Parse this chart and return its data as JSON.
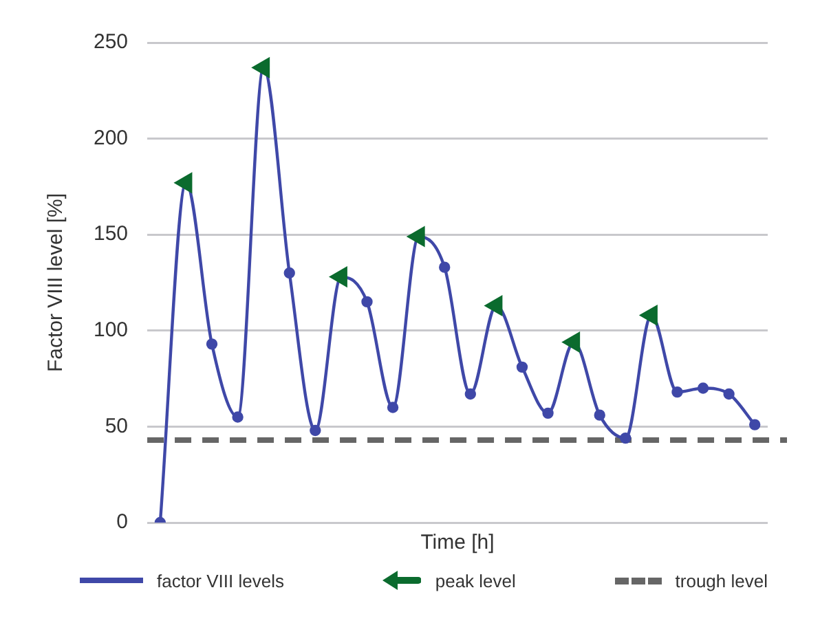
{
  "chart_data": {
    "type": "line",
    "xlabel": "Time [h]",
    "ylabel": "Factor VIII level [%]",
    "categories": [
      null,
      null,
      null,
      null,
      null,
      null,
      null,
      null,
      null,
      null,
      null,
      null,
      null,
      null,
      null,
      null,
      null,
      null,
      null,
      null,
      null,
      null,
      null,
      null
    ],
    "series": [
      {
        "name": "factor VIII levels",
        "color": "#3f48a8",
        "marker": "circle",
        "values": [
          0,
          177,
          93,
          55,
          237,
          130,
          48,
          128,
          115,
          60,
          149,
          133,
          67,
          113,
          81,
          57,
          94,
          56,
          44,
          108,
          68,
          70,
          67,
          51
        ]
      },
      {
        "name": "peak level",
        "type": "scatter",
        "color": "#0b6b2e",
        "values": [
          null,
          177,
          null,
          null,
          237,
          null,
          null,
          128,
          null,
          null,
          149,
          null,
          null,
          113,
          null,
          null,
          94,
          null,
          null,
          108,
          null,
          null,
          null,
          null
        ]
      }
    ],
    "ref_lines": [
      {
        "axis": "y",
        "value": 43,
        "label": "trough level",
        "color": "#666666",
        "line_style": "dashed"
      }
    ],
    "ylim": [
      0,
      250
    ],
    "yticks": [
      0,
      50,
      100,
      150,
      200,
      250
    ],
    "grid": "y",
    "tick_labels": "y",
    "legend": "bottom"
  }
}
